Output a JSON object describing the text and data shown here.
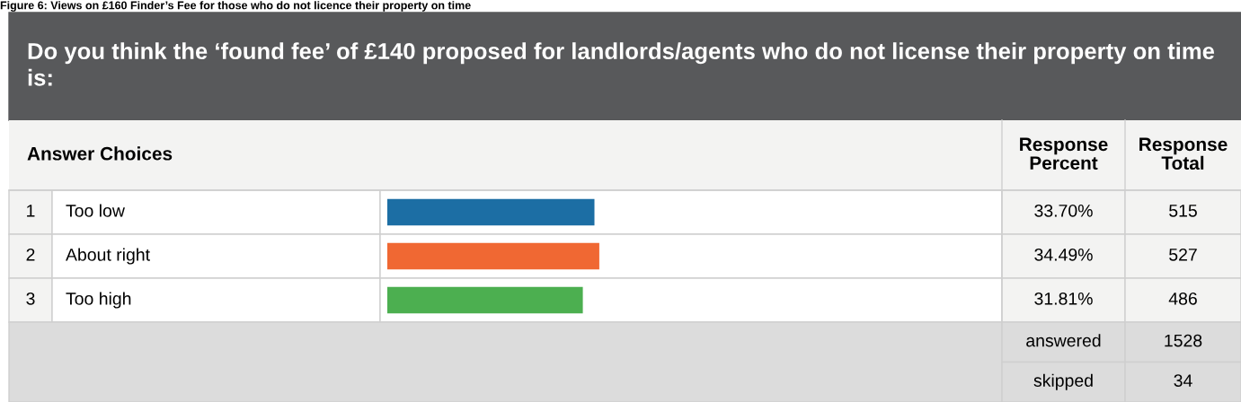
{
  "chart_data": {
    "type": "bar",
    "orientation": "horizontal",
    "title": "Do you think the ‘found fee’ of £140 proposed for landlords/agents who do not license their property on time is:",
    "categories": [
      "Too low",
      "About right",
      "Too high"
    ],
    "values": [
      33.7,
      34.49,
      31.81
    ],
    "colors": [
      "#1c6ea4",
      "#f06833",
      "#4caf50"
    ],
    "value_labels": [
      "33.70%",
      "34.49%",
      "31.81%"
    ],
    "xlim": [
      0,
      100
    ],
    "legend": false,
    "annotations": [
      "Figure 6: Views on £160 Finder’s Fee for those who do not licence their property on time",
      "Answer Choices",
      "Response\nPercent",
      "Response\nTotal",
      "1",
      "2",
      "3",
      "515",
      "527",
      "486",
      "answered",
      "1528",
      "skipped",
      "34"
    ]
  }
}
